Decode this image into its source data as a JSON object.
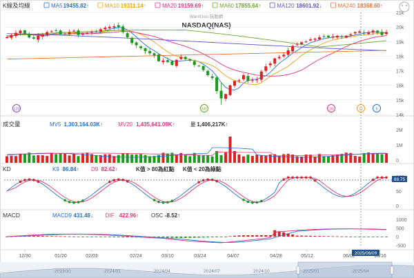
{
  "header": {
    "chart_label": "K線及均線",
    "ma_legend": [
      {
        "name": "MA5",
        "value": "19455.82↑",
        "color": "#1f6fd6"
      },
      {
        "name": "MA10",
        "value": "19311.14↑",
        "color": "#e6a117"
      },
      {
        "name": "MA20",
        "value": "19159.69↑",
        "color": "#e0307a"
      },
      {
        "name": "MA60",
        "value": "17855.64↑",
        "color": "#6aa62a"
      },
      {
        "name": "MA120",
        "value": "18601.92↓",
        "color": "#5b55c8"
      },
      {
        "name": "MA240",
        "value": "18368.60↑",
        "color": "#e8703a"
      }
    ],
    "watermark": "WantGoo 玩股網",
    "title": "NASDAQ(NAS)"
  },
  "colors": {
    "up": "#e02020",
    "down": "#1a9a1a",
    "grid": "#e6e6e6"
  },
  "price_axis": {
    "ticks": [
      "21k",
      "20k",
      "19k",
      "18k",
      "17k",
      "16k",
      "15k",
      "14k"
    ]
  },
  "events": [
    {
      "label": "120",
      "color": "#8a4fc8"
    },
    {
      "label": "60",
      "color": "#6aa62a"
    },
    {
      "label": "20",
      "color": "#e0307a"
    },
    {
      "label": "10",
      "color": "#e6a117"
    },
    {
      "label": "5",
      "color": "#1f6fd6"
    }
  ],
  "volume_panel": {
    "label": "成交量",
    "mv5": {
      "name": "MV5",
      "value": "1,303,164.03K↑",
      "color": "#1f6fd6"
    },
    "mv20": {
      "name": "MV20",
      "value": "1,435,641.09K↑",
      "color": "#e0307a"
    },
    "vol": {
      "name": "量",
      "value": "1,406,217K↑",
      "color": "#333333"
    },
    "ticks": [
      "2M",
      "1M",
      "0"
    ]
  },
  "kd_panel": {
    "label": "KD",
    "k": {
      "name": "K9",
      "value": "86.84↑",
      "color": "#1f6fd6"
    },
    "d": {
      "name": "D9",
      "value": "82.62↑",
      "color": "#e0307a"
    },
    "note1": "K值 > 80為紅點",
    "note2": "K值 < 20為綠點",
    "ticks": [
      "100",
      "50",
      "0"
    ],
    "badge": "88.75"
  },
  "macd_panel": {
    "label": "MACD",
    "macd": {
      "name": "MACD9",
      "value": "431.48↓",
      "color": "#1f6fd6"
    },
    "dif": {
      "name": "DIF",
      "value": "422.96↑",
      "color": "#e0307a"
    },
    "osc": {
      "name": "OSC",
      "value": "-8.52↑",
      "color": "#333333"
    },
    "ticks": [
      "1000",
      "500",
      "0",
      "-500"
    ],
    "date_badge": "2025/06/09"
  },
  "date_axis": {
    "labels": [
      "12/30",
      "01/20",
      "02/03",
      "02/24",
      "03/10",
      "03/24",
      "04/07",
      "04/28",
      "05/12",
      "06/02",
      "06/16"
    ],
    "nav_labels": [
      "2023/10",
      "2024/01",
      "2024/04",
      "2024/07",
      "2024/10",
      "2025/01",
      "2025/04"
    ]
  },
  "chart_data": {
    "type": "candlestick",
    "title": "NASDAQ(NAS)",
    "x_axis_labels": [
      "12/30",
      "01/20",
      "02/03",
      "02/24",
      "03/10",
      "03/24",
      "04/07",
      "04/28",
      "05/12",
      "06/02",
      "06/16"
    ],
    "y_axis_range": [
      14000,
      21000
    ],
    "close_path": [
      19300,
      19450,
      19600,
      19750,
      19550,
      19280,
      19200,
      19400,
      19500,
      19650,
      19700,
      19750,
      19500,
      19550,
      19650,
      19750,
      19450,
      19550,
      19600,
      19650,
      19700,
      19850,
      19950,
      20000,
      20050,
      20000,
      19650,
      19300,
      18900,
      18750,
      18550,
      18350,
      18200,
      18050,
      17650,
      17700,
      17600,
      17400,
      17750,
      17950,
      17800,
      17700,
      17400,
      17300,
      17050,
      16700,
      16500,
      15600,
      15100,
      15400,
      16000,
      16300,
      16350,
      16700,
      16300,
      16350,
      16400,
      16950,
      17300,
      17500,
      17850,
      17950,
      18100,
      18400,
      18700,
      18800,
      18950,
      19000,
      19150,
      19200,
      19300,
      19350,
      19300,
      19350,
      19400,
      19300,
      19400,
      19500,
      19650,
      19700,
      19600,
      19650,
      19750,
      19600,
      19450,
      19650
    ]
  }
}
